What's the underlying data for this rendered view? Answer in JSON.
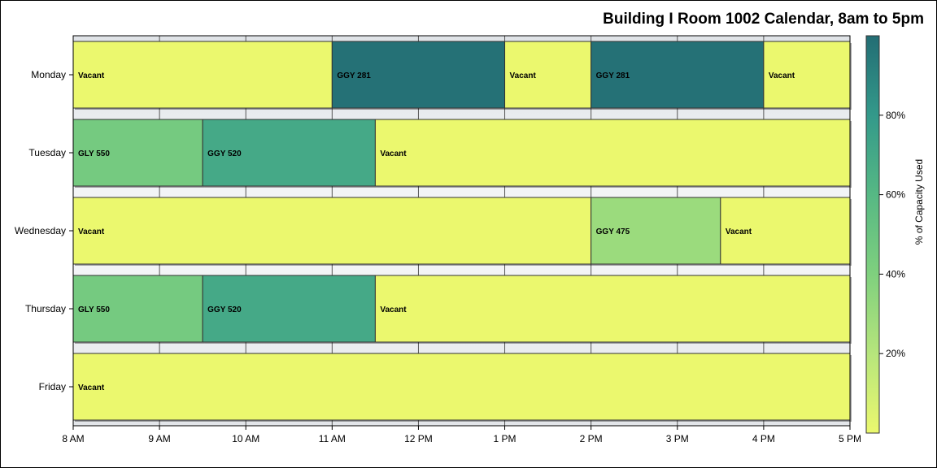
{
  "chart_data": {
    "type": "gantt",
    "title": "Building I Room 1002 Calendar, 8am to 5pm",
    "x_ticks": [
      "8 AM",
      "9 AM",
      "10 AM",
      "11 AM",
      "12 PM",
      "1 PM",
      "2 PM",
      "3 PM",
      "4 PM",
      "5 PM"
    ],
    "x_range_hours": [
      8,
      17
    ],
    "days": [
      "Monday",
      "Tuesday",
      "Wednesday",
      "Thursday",
      "Friday"
    ],
    "grid": true,
    "events": [
      {
        "day": "Monday",
        "start": 8,
        "end": 11,
        "label": "Vacant",
        "capacity_pct": 0
      },
      {
        "day": "Monday",
        "start": 11,
        "end": 13,
        "label": "GGY 281",
        "capacity_pct": 98
      },
      {
        "day": "Monday",
        "start": 13,
        "end": 14,
        "label": "Vacant",
        "capacity_pct": 0
      },
      {
        "day": "Monday",
        "start": 14,
        "end": 16,
        "label": "GGY 281",
        "capacity_pct": 98
      },
      {
        "day": "Monday",
        "start": 16,
        "end": 17,
        "label": "Vacant",
        "capacity_pct": 0
      },
      {
        "day": "Tuesday",
        "start": 8,
        "end": 9.5,
        "label": "GLY 550",
        "capacity_pct": 45
      },
      {
        "day": "Tuesday",
        "start": 9.5,
        "end": 11.5,
        "label": "GGY 520",
        "capacity_pct": 70
      },
      {
        "day": "Tuesday",
        "start": 11.5,
        "end": 17,
        "label": "Vacant",
        "capacity_pct": 0
      },
      {
        "day": "Wednesday",
        "start": 8,
        "end": 14,
        "label": "Vacant",
        "capacity_pct": 0
      },
      {
        "day": "Wednesday",
        "start": 14,
        "end": 15.5,
        "label": "GGY 475",
        "capacity_pct": 30
      },
      {
        "day": "Wednesday",
        "start": 15.5,
        "end": 17,
        "label": "Vacant",
        "capacity_pct": 0
      },
      {
        "day": "Thursday",
        "start": 8,
        "end": 9.5,
        "label": "GLY 550",
        "capacity_pct": 45
      },
      {
        "day": "Thursday",
        "start": 9.5,
        "end": 11.5,
        "label": "GGY 520",
        "capacity_pct": 70
      },
      {
        "day": "Thursday",
        "start": 11.5,
        "end": 17,
        "label": "Vacant",
        "capacity_pct": 0
      },
      {
        "day": "Friday",
        "start": 8,
        "end": 17,
        "label": "Vacant",
        "capacity_pct": 0
      }
    ],
    "legend": {
      "label": "% of Capacity Used",
      "ticks": [
        "20%",
        "40%",
        "60%",
        "80%"
      ],
      "tick_values": [
        20,
        40,
        60,
        80
      ],
      "range": [
        0,
        100
      ],
      "placement": "right",
      "colors": [
        "#ebf86e",
        "#b6e57c",
        "#7fd07e",
        "#56b884",
        "#33998a",
        "#236d74"
      ]
    }
  }
}
